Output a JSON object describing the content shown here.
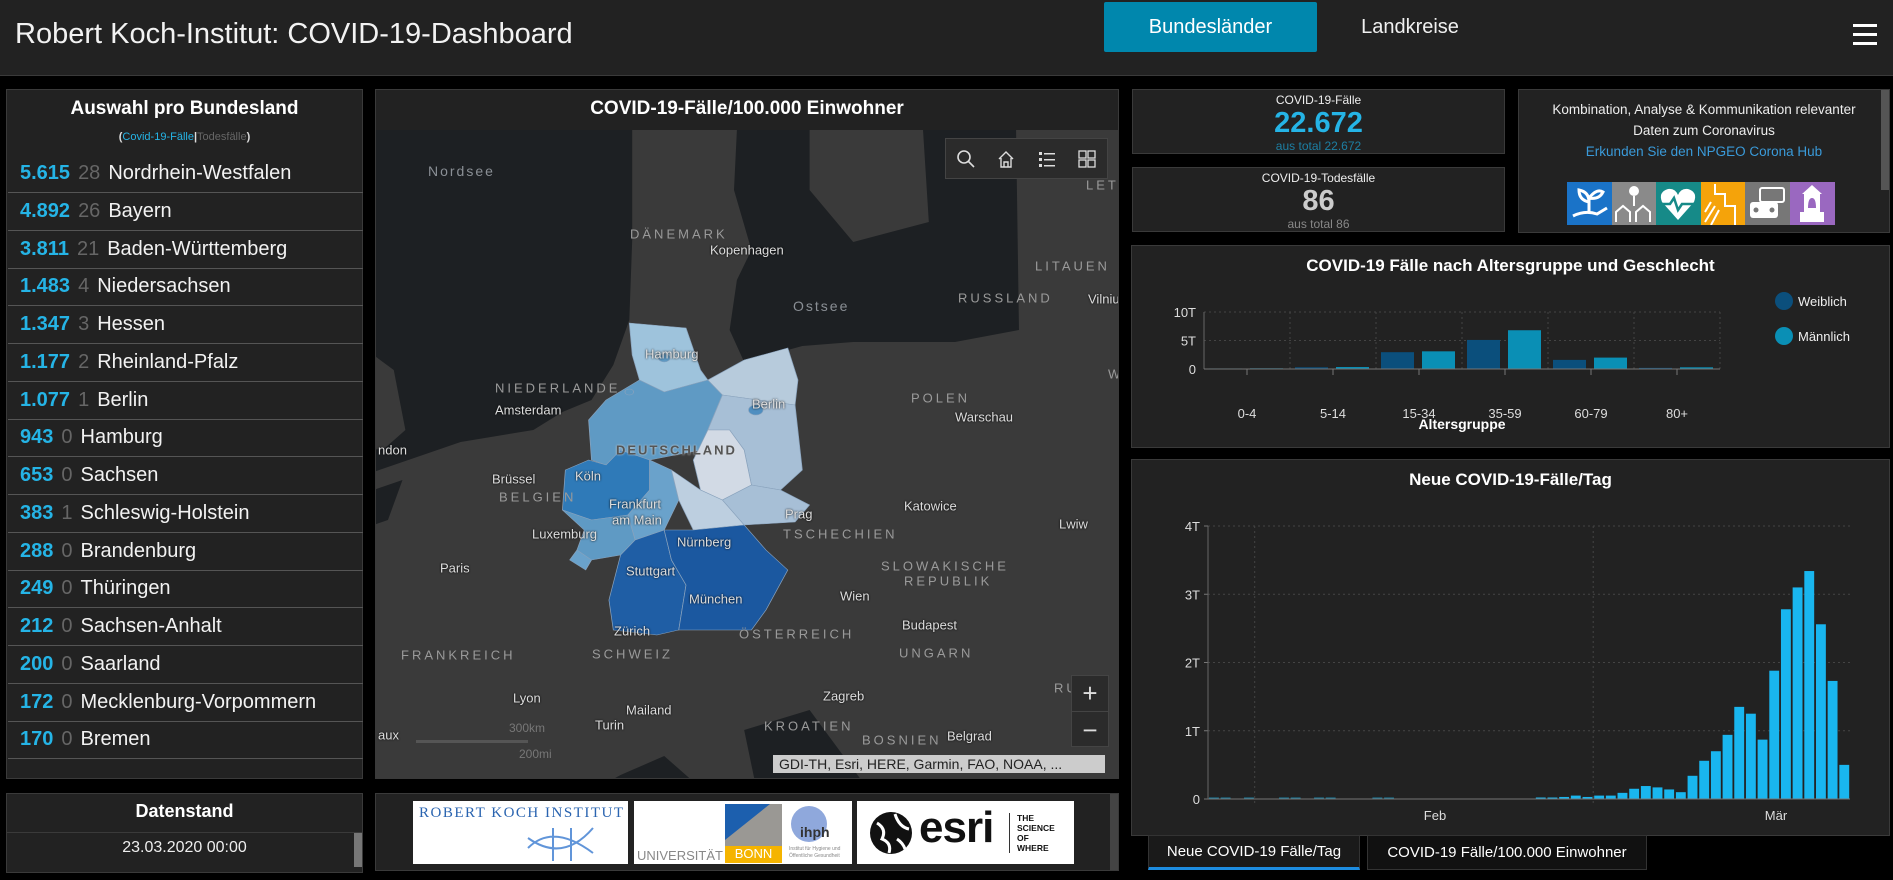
{
  "header": {
    "title": "Robert Koch-Institut: COVID-19-Dashboard",
    "nav": [
      "Bundesländer",
      "Landkreise"
    ],
    "active_nav": "Bundesländer",
    "menu_icon": "hamburger-menu-icon"
  },
  "colors": {
    "accent": "#25b4e6",
    "nav_active": "#0087ad",
    "weiblich": "#0b4f7c",
    "maennlich": "#0a8fb5",
    "daily_bar": "#19b6ef"
  },
  "states_panel": {
    "title": "Auswahl pro Bundesland",
    "subtitle_open": "(",
    "subtitle_cases": "Covid-19-Fälle",
    "subtitle_sep": "|",
    "subtitle_deaths": "Todesfälle",
    "subtitle_close": ")",
    "rows": [
      {
        "cases": "5.615",
        "deaths": "28",
        "name": "Nordrhein-Westfalen"
      },
      {
        "cases": "4.892",
        "deaths": "26",
        "name": "Bayern"
      },
      {
        "cases": "3.811",
        "deaths": "21",
        "name": "Baden-Württemberg"
      },
      {
        "cases": "1.483",
        "deaths": "4",
        "name": "Niedersachsen"
      },
      {
        "cases": "1.347",
        "deaths": "3",
        "name": "Hessen"
      },
      {
        "cases": "1.177",
        "deaths": "2",
        "name": "Rheinland-Pfalz"
      },
      {
        "cases": "1.077",
        "deaths": "1",
        "name": "Berlin"
      },
      {
        "cases": "943",
        "deaths": "0",
        "name": "Hamburg"
      },
      {
        "cases": "653",
        "deaths": "0",
        "name": "Sachsen"
      },
      {
        "cases": "383",
        "deaths": "1",
        "name": "Schleswig-Holstein"
      },
      {
        "cases": "288",
        "deaths": "0",
        "name": "Brandenburg"
      },
      {
        "cases": "249",
        "deaths": "0",
        "name": "Thüringen"
      },
      {
        "cases": "212",
        "deaths": "0",
        "name": "Sachsen-Anhalt"
      },
      {
        "cases": "200",
        "deaths": "0",
        "name": "Saarland"
      },
      {
        "cases": "172",
        "deaths": "0",
        "name": "Mecklenburg-Vorpommern"
      },
      {
        "cases": "170",
        "deaths": "0",
        "name": "Bremen"
      }
    ]
  },
  "datenstand": {
    "title": "Datenstand",
    "value": "23.03.2020 00:00"
  },
  "map": {
    "title": "COVID-19-Fälle/100.000 Einwohner",
    "tools": [
      "search-icon",
      "home-icon",
      "legend-list-icon",
      "basemap-gallery-icon"
    ],
    "zoom_in": "+",
    "zoom_out": "−",
    "scale_km": "300km",
    "scale_mi": "200mi",
    "attribution": "GDI-TH, Esri, HERE, Garmin, FAO, NOAA, ...",
    "labels": [
      "Nordsee",
      "DÄNEMARK",
      "Kopenhagen",
      "LITAUEN",
      "RUSSLAND",
      "Vilnius",
      "LET",
      "Ostsee",
      "Hamburg",
      "NIEDERLANDE",
      "Amsterdam",
      "Berlin",
      "POLEN",
      "Warschau",
      "ndon",
      "DEUTSCHLAND",
      "W",
      "Brüssel",
      "Köln",
      "BELGIEN",
      "Frankfurt",
      "am Main",
      "Prag",
      "Katowice",
      "Lwiw",
      "Luxemburg",
      "TSCHECHIEN",
      "Nürnberg",
      "Paris",
      "Stuttgart",
      "SLOWAKISCHE",
      "REPUBLIK",
      "Wien",
      "München",
      "Zürich",
      "ÖSTERREICH",
      "Budapest",
      "UNGARN",
      "FRANKREICH",
      "SCHWEIZ",
      "Lyon",
      "Mailand",
      "Zagreb",
      "Turin",
      "KROATIEN",
      "BOSNIEN",
      "Belgrad",
      "aux",
      "RU"
    ],
    "choropleth": {
      "Nordrhein-Westfalen": "#2f7ab8",
      "Bayern": "#1b58a0",
      "Baden-Württemberg": "#1f5ea5",
      "Niedersachsen": "#5f9ac4",
      "Hessen": "#6aa2cb",
      "Rheinland-Pfalz": "#5f9ac4",
      "Berlin": "#4f8ec0",
      "Hamburg": "#5f9ac4",
      "Sachsen": "#a7bfd6",
      "Schleswig-Holstein": "#9ec3dc",
      "Brandenburg": "#a7bfd6",
      "Thüringen": "#bdcfe0",
      "Sachsen-Anhalt": "#d2dae5",
      "Saarland": "#6aa2cb",
      "Mecklenburg-Vorpommern": "#b7cbdc",
      "Bremen": "#5f9ac4"
    }
  },
  "logos": {
    "rki": "ROBERT KOCH INSTITUT",
    "bonn_a": "UNIVERSITÄT",
    "bonn_b": "BONN",
    "ihph": "ihph",
    "ihph_sub": "Institut für Hygiene und Öffentliche Gesundheit",
    "esri": "esri",
    "esri_tag": [
      "THE",
      "SCIENCE",
      "OF",
      "WHERE"
    ]
  },
  "kpi_cases": {
    "title": "COVID-19-Fälle",
    "value": "22.672",
    "sub": "aus total 22.672"
  },
  "kpi_deaths": {
    "title": "COVID-19-Todesfälle",
    "value": "86",
    "sub": "aus total 86"
  },
  "info": {
    "line1": "Kombination, Analyse & Kommunikation relevanter",
    "line2": "Daten zum Coronavirus",
    "link": "Erkunden Sie den NPGEO Corona Hub",
    "icons": [
      {
        "name": "plant-hand-icon",
        "color": "#1a73c8"
      },
      {
        "name": "pin-houses-icon",
        "color": "#8a8a8a"
      },
      {
        "name": "heart-pulse-icon",
        "color": "#168a88"
      },
      {
        "name": "map-zones-icon",
        "color": "#f5a30a"
      },
      {
        "name": "cars-icon",
        "color": "#777777"
      },
      {
        "name": "bell-tower-icon",
        "color": "#9a68c0"
      }
    ]
  },
  "chart_data": [
    {
      "type": "bar",
      "title": "COVID-19 Fälle nach Altersgruppe und Geschlecht",
      "xlabel": "Altersgruppe",
      "ylabel": "",
      "categories": [
        "0-4",
        "5-14",
        "15-34",
        "35-59",
        "60-79",
        "80+"
      ],
      "series": [
        {
          "name": "Weiblich",
          "values": [
            100,
            300,
            2950,
            5100,
            1600,
            200
          ]
        },
        {
          "name": "Männlich",
          "values": [
            120,
            350,
            3100,
            6800,
            2000,
            300
          ]
        }
      ],
      "ylim": [
        0,
        10000
      ],
      "yticks": [
        "0",
        "5T",
        "10T"
      ],
      "grid": true,
      "legend": "right"
    },
    {
      "type": "bar",
      "title": "Neue COVID-19-Fälle/Tag",
      "xlabel": "",
      "ylabel": "",
      "x": [
        "2020-01-28",
        "2020-01-29",
        "2020-01-30",
        "2020-01-31",
        "2020-02-01",
        "2020-02-02",
        "2020-02-03",
        "2020-02-04",
        "2020-02-05",
        "2020-02-06",
        "2020-02-07",
        "2020-02-08",
        "2020-02-09",
        "2020-02-10",
        "2020-02-11",
        "2020-02-12",
        "2020-02-13",
        "2020-02-14",
        "2020-02-15",
        "2020-02-16",
        "2020-02-17",
        "2020-02-18",
        "2020-02-19",
        "2020-02-20",
        "2020-02-21",
        "2020-02-22",
        "2020-02-23",
        "2020-02-24",
        "2020-02-25",
        "2020-02-26",
        "2020-02-27",
        "2020-02-28",
        "2020-02-29",
        "2020-03-01",
        "2020-03-02",
        "2020-03-03",
        "2020-03-04",
        "2020-03-05",
        "2020-03-06",
        "2020-03-07",
        "2020-03-08",
        "2020-03-09",
        "2020-03-10",
        "2020-03-11",
        "2020-03-12",
        "2020-03-13",
        "2020-03-14",
        "2020-03-15",
        "2020-03-16",
        "2020-03-17",
        "2020-03-18",
        "2020-03-19",
        "2020-03-20",
        "2020-03-21",
        "2020-03-22"
      ],
      "values": [
        2,
        2,
        0,
        2,
        0,
        0,
        2,
        2,
        0,
        2,
        2,
        0,
        0,
        0,
        2,
        2,
        0,
        0,
        0,
        0,
        0,
        0,
        0,
        0,
        0,
        0,
        0,
        0,
        15,
        20,
        30,
        50,
        30,
        50,
        50,
        90,
        150,
        190,
        170,
        140,
        100,
        340,
        560,
        700,
        940,
        1350,
        1250,
        870,
        1880,
        2780,
        3100,
        3340,
        2560,
        1730,
        500
      ],
      "ylim": [
        0,
        4000
      ],
      "yticks": [
        "0",
        "1T",
        "2T",
        "3T",
        "4T"
      ],
      "xticks": [
        "Feb",
        "Mär"
      ],
      "grid": true
    }
  ],
  "bottom_tabs": [
    "Neue COVID-19 Fälle/Tag",
    "COVID-19 Fälle/100.000 Einwohner"
  ],
  "active_tab": "Neue COVID-19 Fälle/Tag"
}
